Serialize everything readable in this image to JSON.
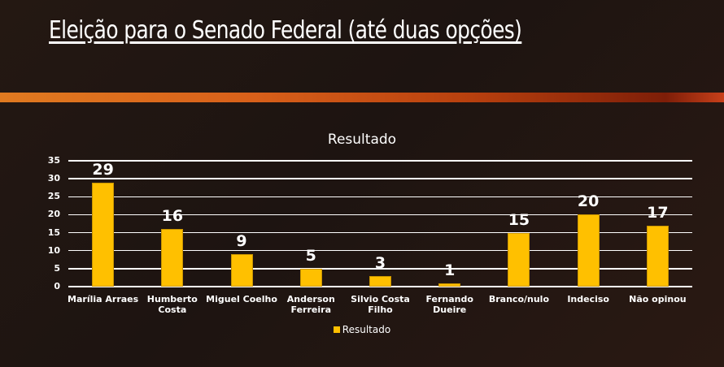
{
  "slide": {
    "title": "Eleição para o Senado Federal (até duas opções)"
  },
  "colors": {
    "bar": "#ffc000",
    "accent_band": "#d8601a",
    "background": "#1f1511",
    "text": "#ffffff"
  },
  "chart_data": {
    "type": "bar",
    "title": "Resultado",
    "xlabel": "",
    "ylabel": "",
    "categories": [
      "Marília Arraes",
      "Humberto Costa",
      "Miguel Coelho",
      "Anderson Ferreira",
      "Silvio Costa Filho",
      "Fernando Dueire",
      "Branco/nulo",
      "Indeciso",
      "Não opinou"
    ],
    "series": [
      {
        "name": "Resultado",
        "values": [
          29,
          16,
          9,
          5,
          3,
          1,
          15,
          20,
          17
        ]
      }
    ],
    "values": [
      29,
      16,
      9,
      5,
      3,
      1,
      15,
      20,
      17
    ],
    "ylim": [
      0,
      35
    ],
    "yticks": [
      0,
      5,
      10,
      15,
      20,
      25,
      30,
      35
    ],
    "grid": true,
    "legend_position": "bottom",
    "data_labels": true
  },
  "chart_labels": {
    "title": "Resultado",
    "legend": "Resultado",
    "x_lines": [
      [
        "Marília Arraes"
      ],
      [
        "Humberto",
        "Costa"
      ],
      [
        "Miguel Coelho"
      ],
      [
        "Anderson",
        "Ferreira"
      ],
      [
        "Silvio Costa",
        "Filho"
      ],
      [
        "Fernando",
        "Dueire"
      ],
      [
        "Branco/nulo"
      ],
      [
        "Indeciso"
      ],
      [
        "Não opinou"
      ]
    ]
  }
}
